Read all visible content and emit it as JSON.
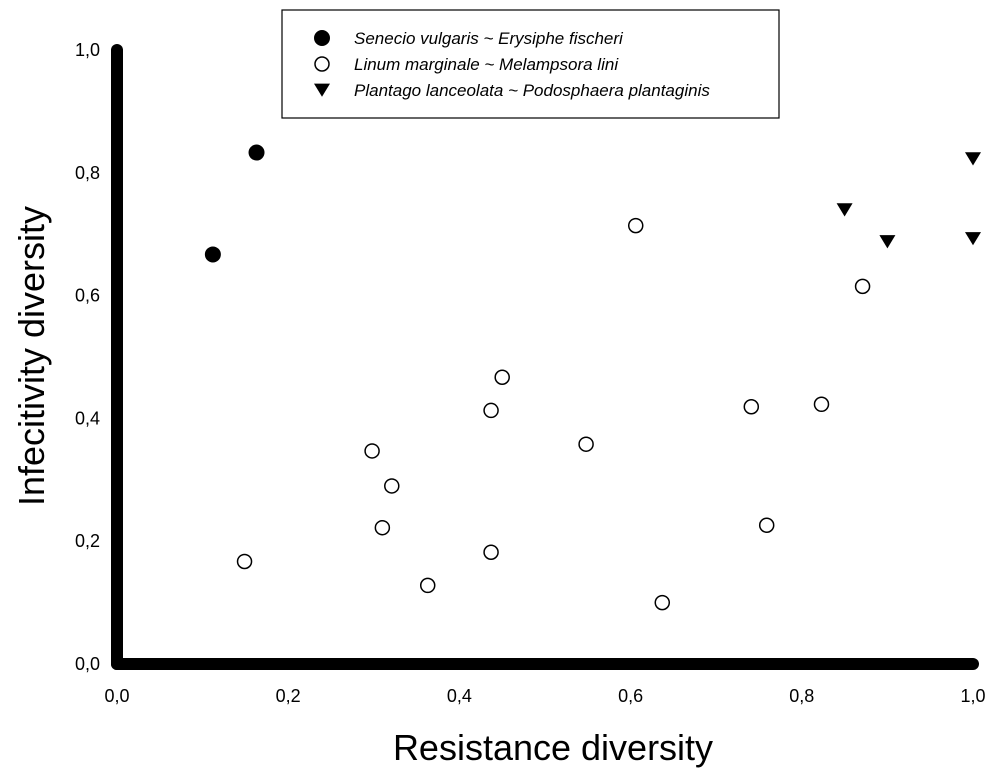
{
  "chart_data": {
    "type": "scatter",
    "xlabel": "Resistance diversity",
    "ylabel": "Infecitivity diversity",
    "xlim": [
      0,
      1
    ],
    "ylim": [
      0,
      1
    ],
    "x_ticks": [
      "0,0",
      "0,2",
      "0,4",
      "0,6",
      "0,8",
      "1,0"
    ],
    "y_ticks": [
      "0,0",
      "0,2",
      "0,4",
      "0,6",
      "0,8",
      "1,0"
    ],
    "grid": false,
    "legend_position": "top-center",
    "series": [
      {
        "name": "Senecio vulgaris ~ Erysiphe fischeri",
        "marker": "filled-circle",
        "x": [
          0.112,
          0.163
        ],
        "y": [
          0.667,
          0.833
        ]
      },
      {
        "name": "Linum marginale ~ Melampsora lini",
        "marker": "open-circle",
        "x": [
          0.149,
          0.298,
          0.31,
          0.321,
          0.363,
          0.437,
          0.437,
          0.45,
          0.548,
          0.606,
          0.637,
          0.741,
          0.759,
          0.823,
          0.871
        ],
        "y": [
          0.167,
          0.347,
          0.222,
          0.29,
          0.128,
          0.413,
          0.182,
          0.467,
          0.358,
          0.714,
          0.1,
          0.419,
          0.226,
          0.423,
          0.615
        ]
      },
      {
        "name": "Plantago lanceolata ~ Podosphaera plantaginis",
        "marker": "filled-triangle-down",
        "x": [
          0.85,
          0.9,
          1.0,
          1.0
        ],
        "y": [
          0.74,
          0.688,
          0.823,
          0.693
        ]
      }
    ]
  }
}
